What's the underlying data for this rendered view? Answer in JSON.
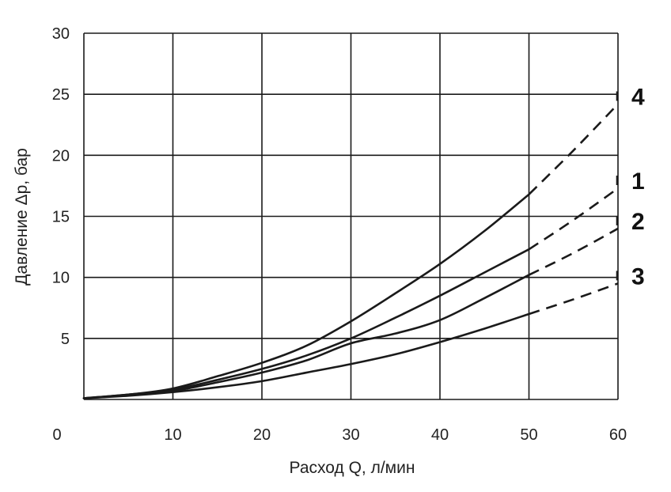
{
  "chart_data": {
    "type": "line",
    "xlabel": "Расход Q, л/мин",
    "ylabel": "Давление Δp, бар",
    "xlim": [
      0,
      60
    ],
    "ylim": [
      0,
      30
    ],
    "x_ticks": [
      "0",
      "10",
      "20",
      "30",
      "40",
      "50",
      "60"
    ],
    "y_ticks": [
      "5",
      "10",
      "15",
      "20",
      "25",
      "30"
    ],
    "grid": true,
    "series": [
      {
        "name": "1",
        "points": [
          [
            0,
            0.1
          ],
          [
            5,
            0.4
          ],
          [
            10,
            0.8
          ],
          [
            15,
            1.6
          ],
          [
            20,
            2.5
          ],
          [
            25,
            3.6
          ],
          [
            30,
            5.0
          ],
          [
            35,
            6.7
          ],
          [
            40,
            8.5
          ],
          [
            45,
            10.4
          ],
          [
            50,
            12.3
          ]
        ],
        "dashed_points": [
          [
            50,
            12.3
          ],
          [
            55,
            14.7
          ],
          [
            60,
            17.3
          ]
        ]
      },
      {
        "name": "2",
        "points": [
          [
            0,
            0.1
          ],
          [
            5,
            0.35
          ],
          [
            10,
            0.7
          ],
          [
            15,
            1.4
          ],
          [
            20,
            2.2
          ],
          [
            25,
            3.2
          ],
          [
            30,
            4.6
          ],
          [
            35,
            5.4
          ],
          [
            40,
            6.5
          ],
          [
            45,
            8.3
          ],
          [
            50,
            10.2
          ]
        ],
        "dashed_points": [
          [
            50,
            10.2
          ],
          [
            55,
            12.0
          ],
          [
            60,
            14.0
          ]
        ]
      },
      {
        "name": "3",
        "points": [
          [
            0,
            0.1
          ],
          [
            5,
            0.3
          ],
          [
            10,
            0.6
          ],
          [
            15,
            1.0
          ],
          [
            20,
            1.5
          ],
          [
            25,
            2.2
          ],
          [
            30,
            2.9
          ],
          [
            35,
            3.7
          ],
          [
            40,
            4.7
          ],
          [
            45,
            5.8
          ],
          [
            50,
            7.0
          ]
        ],
        "dashed_points": [
          [
            50,
            7.0
          ],
          [
            55,
            8.2
          ],
          [
            60,
            9.5
          ]
        ]
      },
      {
        "name": "4",
        "points": [
          [
            0,
            0.1
          ],
          [
            5,
            0.4
          ],
          [
            10,
            0.9
          ],
          [
            15,
            1.9
          ],
          [
            20,
            3.0
          ],
          [
            25,
            4.4
          ],
          [
            30,
            6.4
          ],
          [
            35,
            8.7
          ],
          [
            40,
            11.1
          ],
          [
            45,
            13.8
          ],
          [
            50,
            16.8
          ]
        ],
        "dashed_points": [
          [
            50,
            16.8
          ],
          [
            55,
            20.4
          ],
          [
            60,
            24.2
          ]
        ]
      }
    ]
  }
}
